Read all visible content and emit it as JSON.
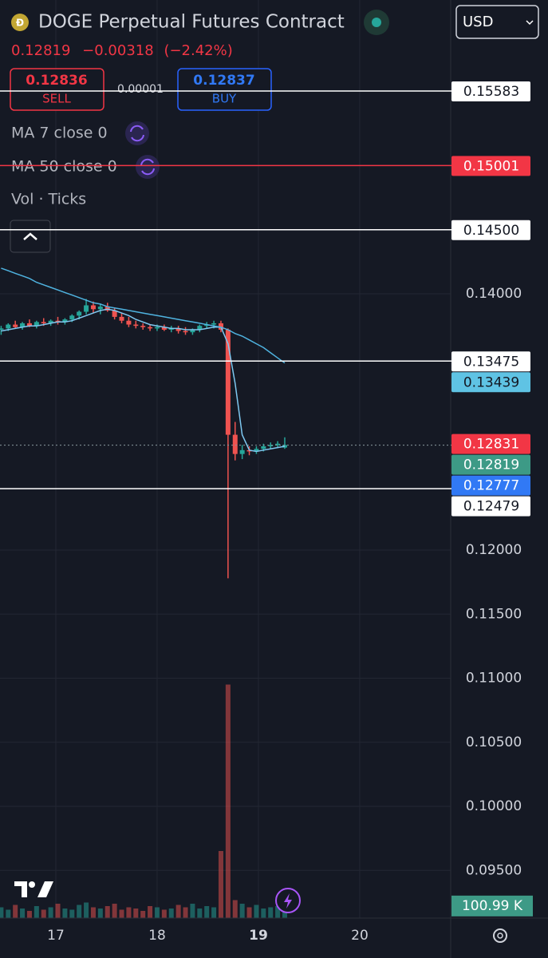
{
  "header": {
    "title": "DOGE Perpetual Futures Contract",
    "currency": "USD",
    "last": "0.12819",
    "change": "−0.00318",
    "change_pct": "(−2.42%)"
  },
  "trade": {
    "sell_price": "0.12836",
    "sell_label": "SELL",
    "spread": "0.00001",
    "buy_price": "0.12837",
    "buy_label": "BUY"
  },
  "indicators": [
    "MA 7 close 0",
    "MA 50 close 0",
    "Vol · Ticks"
  ],
  "chart_data": {
    "type": "candlestick",
    "up_color": "#26a69a",
    "down_color": "#ef5350",
    "x": [
      16.46,
      16.53,
      16.6,
      16.67,
      16.74,
      16.81,
      16.88,
      16.95,
      17.02,
      17.09,
      17.16,
      17.23,
      17.3,
      17.37,
      17.44,
      17.51,
      17.58,
      17.65,
      17.72,
      17.79,
      17.86,
      17.93,
      18.0,
      18.07,
      18.14,
      18.21,
      18.28,
      18.35,
      18.42,
      18.49,
      18.56,
      18.63,
      18.7,
      18.77,
      18.84,
      18.91,
      18.98,
      19.05,
      19.12,
      19.19,
      19.26
    ],
    "open": [
      0.1372,
      0.1373,
      0.1376,
      0.1374,
      0.1377,
      0.1375,
      0.1378,
      0.1377,
      0.1379,
      0.1378,
      0.138,
      0.1383,
      0.1386,
      0.1391,
      0.1388,
      0.139,
      0.1387,
      0.1382,
      0.1379,
      0.1376,
      0.1375,
      0.1374,
      0.1373,
      0.1374,
      0.1372,
      0.1373,
      0.1371,
      0.137,
      0.1372,
      0.1375,
      0.1376,
      0.1377,
      0.1372,
      0.129,
      0.1275,
      0.1278,
      0.1277,
      0.1279,
      0.1281,
      0.1282,
      0.128
    ],
    "high": [
      0.1375,
      0.1377,
      0.1379,
      0.1378,
      0.138,
      0.1379,
      0.1381,
      0.138,
      0.1382,
      0.1381,
      0.1384,
      0.1387,
      0.1396,
      0.1394,
      0.1392,
      0.1393,
      0.1389,
      0.1385,
      0.1382,
      0.1379,
      0.1377,
      0.1376,
      0.1376,
      0.1376,
      0.1375,
      0.1375,
      0.1374,
      0.1373,
      0.1376,
      0.1378,
      0.1379,
      0.1379,
      0.1373,
      0.13,
      0.1282,
      0.1281,
      0.1281,
      0.1283,
      0.1284,
      0.1285,
      0.1288
    ],
    "low": [
      0.1368,
      0.1371,
      0.1373,
      0.1372,
      0.1374,
      0.1373,
      0.1375,
      0.1375,
      0.1376,
      0.1376,
      0.1378,
      0.138,
      0.1384,
      0.1385,
      0.1384,
      0.1386,
      0.138,
      0.1377,
      0.1374,
      0.1373,
      0.1372,
      0.1371,
      0.1371,
      0.1371,
      0.137,
      0.1369,
      0.1368,
      0.1368,
      0.137,
      0.1373,
      0.1373,
      0.137,
      0.1178,
      0.127,
      0.1271,
      0.1274,
      0.1275,
      0.1277,
      0.1279,
      0.128,
      0.1279
    ],
    "close": [
      0.1373,
      0.1376,
      0.1374,
      0.1377,
      0.1375,
      0.1378,
      0.1377,
      0.1379,
      0.1378,
      0.138,
      0.1383,
      0.1386,
      0.1391,
      0.1388,
      0.139,
      0.1387,
      0.1382,
      0.1379,
      0.1376,
      0.1375,
      0.1374,
      0.1373,
      0.1374,
      0.1372,
      0.1373,
      0.1371,
      0.137,
      0.1372,
      0.1375,
      0.1376,
      0.1377,
      0.1372,
      0.129,
      0.1275,
      0.1278,
      0.1277,
      0.1279,
      0.1281,
      0.1282,
      0.1283,
      0.1282
    ],
    "moving_averages": [
      {
        "color": "#7ec8f0",
        "values": [
          0.1371,
          0.1372,
          0.1373,
          0.1374,
          0.1375,
          0.1375,
          0.1376,
          0.1377,
          0.1378,
          0.1378,
          0.1379,
          0.1381,
          0.1383,
          0.1385,
          0.1387,
          0.1388,
          0.1387,
          0.1385,
          0.1383,
          0.138,
          0.1378,
          0.1376,
          0.1375,
          0.1374,
          0.1373,
          0.1373,
          0.1372,
          0.1372,
          0.1372,
          0.1373,
          0.1374,
          0.1374,
          0.1361,
          0.133,
          0.129,
          0.1278,
          0.1277,
          0.1278,
          0.1279,
          0.128,
          0.1281
        ]
      },
      {
        "color": "#4fb3e0",
        "values": [
          0.142,
          0.1418,
          0.1416,
          0.1414,
          0.1412,
          0.1409,
          0.1407,
          0.1405,
          0.1403,
          0.1401,
          0.1399,
          0.1397,
          0.1395,
          0.1393,
          0.1392,
          0.139,
          0.1389,
          0.1388,
          0.1387,
          0.1386,
          0.1385,
          0.1384,
          0.1383,
          0.1382,
          0.1381,
          0.138,
          0.1379,
          0.1378,
          0.1377,
          0.1376,
          0.1375,
          0.1374,
          0.1372,
          0.1369,
          0.1367,
          0.1364,
          0.1361,
          0.1358,
          0.1354,
          0.135,
          0.1346
        ]
      }
    ],
    "volume": {
      "values": [
        90000,
        70000,
        110000,
        80000,
        60000,
        100000,
        70000,
        90000,
        120000,
        80000,
        70000,
        110000,
        130000,
        90000,
        80000,
        100000,
        120000,
        70000,
        90000,
        80000,
        60000,
        100000,
        90000,
        70000,
        80000,
        110000,
        90000,
        120000,
        80000,
        100000,
        90000,
        560000,
        1950000,
        150000,
        120000,
        90000,
        110000,
        80000,
        90000,
        100000,
        100990
      ],
      "ylim": [
        0,
        2000000
      ],
      "last": {
        "value": 100990,
        "label": "100.99 K"
      }
    },
    "xlim": [
      16.449,
      20.898
    ],
    "ylim": [
      0.09128,
      0.16293
    ],
    "xticks": [
      17,
      18,
      19,
      20
    ],
    "bold_xtick": 19,
    "yticks": [
      {
        "value": 0.14,
        "label": "0.14000"
      },
      {
        "value": 0.12,
        "label": "0.12000"
      },
      {
        "value": 0.115,
        "label": "0.11500"
      },
      {
        "value": 0.11,
        "label": "0.11000"
      },
      {
        "value": 0.105,
        "label": "0.10500"
      },
      {
        "value": 0.1,
        "label": "0.10000"
      },
      {
        "value": 0.095,
        "label": "0.09500"
      }
    ],
    "grid": true,
    "levels": [
      {
        "value": 0.15583,
        "bg": "#ffffff",
        "fg": "#131722",
        "line": "solid",
        "line_color": "#ffffff"
      },
      {
        "value": 0.15001,
        "bg": "#f23645",
        "fg": "#ffffff",
        "line": "solid",
        "line_color": "#f23645"
      },
      {
        "value": 0.145,
        "label": "0.14500",
        "bg": "#ffffff",
        "fg": "#131722",
        "line": "solid",
        "line_color": "#ffffff"
      },
      {
        "value": 0.13475,
        "bg": "#ffffff",
        "fg": "#131722",
        "line": "solid",
        "line_color": "#ffffff"
      },
      {
        "value": 0.13439,
        "bg": "#5fc3e4",
        "fg": "#131722"
      },
      {
        "value": 0.12831,
        "bg": "#f23645",
        "fg": "#ffffff"
      },
      {
        "value": 0.12819,
        "bg": "#3d9a86",
        "fg": "#ffffff",
        "line": "dotted",
        "line_color": "#8a9aa0"
      },
      {
        "value": 0.12777,
        "bg": "#3179f5",
        "fg": "#ffffff"
      },
      {
        "value": 0.12479,
        "bg": "#ffffff",
        "fg": "#131722",
        "line": "solid",
        "line_color": "#ffffff"
      }
    ]
  }
}
